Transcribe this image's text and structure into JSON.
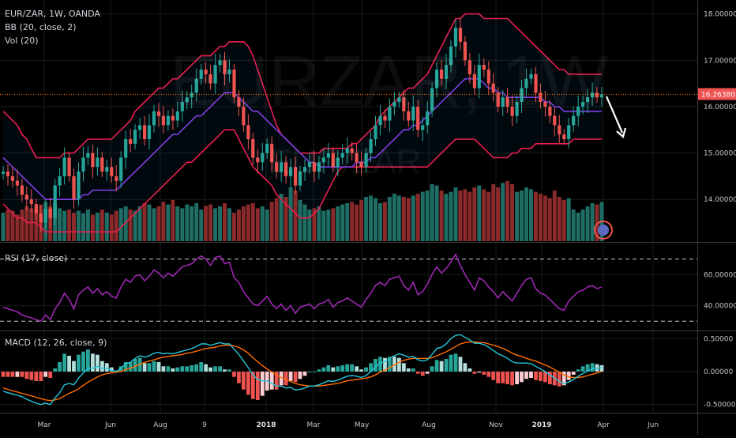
{
  "colors": {
    "background": "#000000",
    "grid": "#1a1a1a",
    "text": "#c8c8c8",
    "up": "#26a69a",
    "down": "#ef5350",
    "bb_band": "#e91e4f",
    "bb_basis": "#7b3fe4",
    "vol_up": "#1e6e66",
    "vol_down": "#8a2a2a",
    "rsi": "#9c27b0",
    "macd": "#26c6da",
    "signal": "#ff6d00",
    "hist_up_strong": "#26a69a",
    "hist_up_weak": "#b2dfdb",
    "hist_down_strong": "#ef5350",
    "hist_down_weak": "#ffcdd2",
    "price_line": "#ff6d00",
    "price_label_bg": "#ef5350",
    "arrow": "#ffffff"
  },
  "legend": {
    "symbol": "EUR/ZAR, 1W, OANDA",
    "bb": "BB (20, close, 2)",
    "vol": "Vol (20)",
    "rsi": "RSI (17, close)",
    "macd": "MACD (12, 26, close, 9)"
  },
  "watermark": {
    "symbol": "EURZAR, 1W",
    "name": "EUR/ZAR"
  },
  "price_label": "16.26380",
  "chart_data": [
    {
      "type": "candlestick",
      "title": "EUR/ZAR, 1W, OANDA",
      "x_labels": [
        "Mar",
        "Jun",
        "Aug",
        "9",
        "2018",
        "Mar",
        "May",
        "Aug",
        "Nov",
        "2019",
        "Apr",
        "Jun"
      ],
      "y_ticks": [
        "18.00000",
        "17.00000",
        "16.00000",
        "15.00000",
        "14.00000"
      ],
      "ylim": [
        13.1,
        18.3
      ],
      "current_price": 16.2638,
      "closes": [
        14.6,
        14.5,
        14.4,
        14.3,
        14.1,
        14.0,
        13.9,
        13.7,
        13.5,
        13.8,
        13.6,
        14.3,
        14.5,
        14.9,
        14.5,
        14.0,
        14.6,
        14.9,
        15.0,
        14.7,
        14.9,
        14.6,
        14.7,
        14.5,
        14.4,
        14.9,
        15.3,
        15.2,
        15.5,
        15.6,
        15.3,
        15.6,
        15.9,
        15.8,
        15.6,
        15.8,
        15.7,
        15.9,
        16.1,
        16.2,
        16.3,
        16.6,
        16.8,
        16.7,
        16.5,
        16.9,
        17.0,
        16.7,
        16.8,
        16.2,
        16.0,
        15.6,
        15.3,
        14.9,
        14.8,
        15.0,
        15.2,
        14.8,
        14.6,
        14.8,
        14.5,
        14.7,
        14.3,
        14.6,
        14.7,
        14.8,
        14.6,
        14.8,
        14.9,
        15.0,
        14.7,
        14.9,
        15.0,
        15.1,
        15.0,
        14.8,
        14.7,
        15.0,
        15.3,
        15.6,
        15.8,
        15.7,
        16.0,
        16.1,
        16.2,
        15.9,
        15.7,
        16.0,
        15.5,
        15.6,
        15.9,
        16.4,
        16.8,
        16.6,
        16.9,
        17.3,
        17.7,
        17.4,
        17.0,
        16.7,
        16.4,
        16.9,
        16.8,
        16.5,
        16.3,
        16.0,
        16.2,
        16.0,
        15.8,
        16.1,
        16.4,
        16.6,
        16.7,
        16.3,
        16.1,
        16.0,
        15.8,
        15.6,
        15.4,
        15.3,
        15.6,
        15.8,
        16.0,
        16.1,
        16.2,
        16.3,
        16.2,
        16.264
      ],
      "bb_upper": [
        15.9,
        15.8,
        15.7,
        15.6,
        15.4,
        15.3,
        15.1,
        14.9,
        14.9,
        14.9,
        14.9,
        14.9,
        14.9,
        15.0,
        15.0,
        15.0,
        15.1,
        15.2,
        15.3,
        15.3,
        15.3,
        15.3,
        15.3,
        15.3,
        15.4,
        15.5,
        15.6,
        15.7,
        15.9,
        16.0,
        16.1,
        16.2,
        16.3,
        16.4,
        16.4,
        16.5,
        16.6,
        16.6,
        16.7,
        16.8,
        16.9,
        17.0,
        17.1,
        17.1,
        17.1,
        17.2,
        17.3,
        17.3,
        17.4,
        17.4,
        17.4,
        17.4,
        17.3,
        17.1,
        16.8,
        16.5,
        16.2,
        15.9,
        15.6,
        15.4,
        15.3,
        15.2,
        15.1,
        15.0,
        15.0,
        15.0,
        15.0,
        15.0,
        15.1,
        15.1,
        15.1,
        15.1,
        15.1,
        15.1,
        15.2,
        15.2,
        15.3,
        15.4,
        15.5,
        15.6,
        15.8,
        15.9,
        16.0,
        16.1,
        16.2,
        16.3,
        16.4,
        16.4,
        16.5,
        16.6,
        16.7,
        16.9,
        17.1,
        17.3,
        17.5,
        17.7,
        17.9,
        17.9,
        18.0,
        18.0,
        18.0,
        18.0,
        17.9,
        17.9,
        17.9,
        17.9,
        17.9,
        17.9,
        17.8,
        17.7,
        17.6,
        17.5,
        17.4,
        17.3,
        17.2,
        17.1,
        17.0,
        16.9,
        16.8,
        16.8,
        16.7,
        16.7,
        16.7,
        16.7,
        16.7,
        16.7,
        16.7,
        16.7
      ],
      "bb_basis": [
        14.9,
        14.8,
        14.7,
        14.6,
        14.5,
        14.4,
        14.3,
        14.2,
        14.1,
        14.0,
        14.0,
        14.0,
        14.0,
        14.0,
        14.0,
        14.0,
        14.0,
        14.1,
        14.1,
        14.2,
        14.2,
        14.2,
        14.2,
        14.2,
        14.2,
        14.3,
        14.4,
        14.5,
        14.6,
        14.7,
        14.8,
        14.9,
        15.0,
        15.1,
        15.2,
        15.3,
        15.4,
        15.4,
        15.5,
        15.6,
        15.7,
        15.8,
        15.8,
        15.9,
        16.0,
        16.1,
        16.2,
        16.3,
        16.3,
        16.3,
        16.2,
        16.1,
        16.0,
        15.9,
        15.9,
        15.8,
        15.7,
        15.6,
        15.5,
        15.4,
        15.3,
        15.2,
        15.1,
        15.0,
        14.9,
        14.8,
        14.8,
        14.7,
        14.7,
        14.7,
        14.7,
        14.7,
        14.7,
        14.7,
        14.7,
        14.8,
        14.8,
        14.8,
        14.9,
        14.9,
        15.0,
        15.1,
        15.2,
        15.3,
        15.4,
        15.5,
        15.5,
        15.6,
        15.6,
        15.7,
        15.8,
        15.9,
        16.0,
        16.1,
        16.2,
        16.3,
        16.4,
        16.5,
        16.6,
        16.6,
        16.6,
        16.6,
        16.5,
        16.4,
        16.4,
        16.3,
        16.3,
        16.2,
        16.2,
        16.2,
        16.2,
        16.2,
        16.2,
        16.2,
        16.2,
        16.1,
        16.1,
        16.0,
        16.0,
        15.9,
        15.9,
        15.9,
        15.9,
        15.9,
        15.9,
        15.9,
        15.9,
        15.9
      ],
      "bb_lower": [
        13.9,
        13.8,
        13.7,
        13.6,
        13.6,
        13.5,
        13.5,
        13.5,
        13.4,
        13.3,
        13.3,
        13.3,
        13.3,
        13.3,
        13.3,
        13.3,
        13.3,
        13.3,
        13.3,
        13.3,
        13.3,
        13.3,
        13.3,
        13.3,
        13.3,
        13.4,
        13.5,
        13.6,
        13.7,
        13.8,
        13.9,
        14.0,
        14.1,
        14.2,
        14.3,
        14.4,
        14.5,
        14.6,
        14.7,
        14.8,
        14.8,
        14.9,
        15.0,
        15.1,
        15.2,
        15.3,
        15.4,
        15.5,
        15.5,
        15.5,
        15.3,
        15.1,
        14.9,
        14.7,
        14.6,
        14.5,
        14.4,
        14.3,
        14.1,
        14.0,
        13.9,
        13.8,
        13.7,
        13.6,
        13.6,
        13.6,
        13.7,
        13.8,
        14.0,
        14.2,
        14.4,
        14.6,
        14.7,
        14.7,
        14.7,
        14.7,
        14.7,
        14.7,
        14.7,
        14.7,
        14.7,
        14.7,
        14.7,
        14.7,
        14.7,
        14.7,
        14.7,
        14.7,
        14.7,
        14.7,
        14.7,
        14.8,
        14.9,
        15.0,
        15.1,
        15.2,
        15.3,
        15.3,
        15.3,
        15.3,
        15.3,
        15.2,
        15.1,
        15.0,
        14.9,
        14.9,
        14.9,
        14.9,
        15.0,
        15.0,
        15.1,
        15.1,
        15.1,
        15.2,
        15.2,
        15.2,
        15.2,
        15.2,
        15.2,
        15.2,
        15.2,
        15.3,
        15.3,
        15.3,
        15.3,
        15.3,
        15.3,
        15.3
      ]
    },
    {
      "type": "bar",
      "title": "Vol (20)",
      "relative_volume": [
        0.45,
        0.5,
        0.48,
        0.42,
        0.5,
        0.55,
        0.52,
        0.5,
        0.58,
        0.62,
        0.55,
        0.6,
        0.52,
        0.48,
        0.5,
        0.45,
        0.48,
        0.44,
        0.5,
        0.42,
        0.45,
        0.5,
        0.45,
        0.42,
        0.48,
        0.52,
        0.55,
        0.5,
        0.48,
        0.55,
        0.6,
        0.58,
        0.52,
        0.55,
        0.62,
        0.58,
        0.65,
        0.55,
        0.52,
        0.58,
        0.55,
        0.6,
        0.5,
        0.56,
        0.58,
        0.52,
        0.55,
        0.6,
        0.52,
        0.45,
        0.5,
        0.55,
        0.58,
        0.6,
        0.52,
        0.55,
        0.5,
        0.62,
        0.68,
        0.75,
        0.7,
        0.85,
        0.8,
        0.65,
        0.58,
        0.5,
        0.52,
        0.55,
        0.48,
        0.5,
        0.52,
        0.55,
        0.58,
        0.6,
        0.62,
        0.58,
        0.65,
        0.7,
        0.72,
        0.68,
        0.6,
        0.62,
        0.7,
        0.75,
        0.72,
        0.7,
        0.68,
        0.72,
        0.75,
        0.78,
        0.8,
        0.9,
        0.88,
        0.8,
        0.75,
        0.78,
        0.85,
        0.8,
        0.82,
        0.78,
        0.85,
        0.88,
        0.82,
        0.78,
        0.9,
        0.85,
        0.92,
        0.95,
        0.9,
        0.78,
        0.8,
        0.85,
        0.82,
        0.78,
        0.75,
        0.72,
        0.68,
        0.8,
        0.7,
        0.65,
        0.68,
        0.5,
        0.45,
        0.5,
        0.55,
        0.6,
        0.58,
        0.62
      ]
    },
    {
      "type": "line",
      "title": "RSI (17, close)",
      "y_ticks": [
        "60.00000",
        "40.00000"
      ],
      "ylim": [
        24,
        78
      ],
      "bands": [
        70,
        30
      ],
      "values": [
        39,
        38,
        37,
        36,
        34,
        33,
        32,
        31,
        30,
        34,
        31,
        38,
        42,
        48,
        44,
        38,
        47,
        50,
        52,
        48,
        51,
        47,
        49,
        46,
        45,
        52,
        57,
        55,
        59,
        60,
        56,
        59,
        63,
        61,
        58,
        61,
        59,
        62,
        65,
        66,
        67,
        70,
        72,
        70,
        66,
        71,
        72,
        67,
        68,
        58,
        55,
        49,
        45,
        41,
        40,
        43,
        46,
        41,
        38,
        41,
        37,
        40,
        35,
        39,
        40,
        41,
        38,
        41,
        42,
        44,
        39,
        42,
        43,
        45,
        43,
        41,
        39,
        44,
        48,
        53,
        55,
        53,
        57,
        58,
        59,
        53,
        50,
        55,
        47,
        49,
        54,
        60,
        65,
        61,
        64,
        68,
        73,
        66,
        60,
        55,
        50,
        58,
        56,
        52,
        49,
        45,
        49,
        46,
        43,
        48,
        53,
        57,
        58,
        51,
        48,
        47,
        44,
        41,
        38,
        37,
        43,
        46,
        49,
        50,
        52,
        53,
        51,
        52
      ]
    },
    {
      "type": "line",
      "title": "MACD (12, 26, close, 9)",
      "y_ticks": [
        "0.50000",
        "0.00000",
        "-0.50000"
      ],
      "ylim": [
        -0.6,
        0.6
      ],
      "macd": [
        -0.3,
        -0.32,
        -0.34,
        -0.36,
        -0.38,
        -0.42,
        -0.45,
        -0.48,
        -0.5,
        -0.48,
        -0.5,
        -0.4,
        -0.32,
        -0.2,
        -0.18,
        -0.2,
        -0.1,
        -0.02,
        0.05,
        0.05,
        0.08,
        0.05,
        0.05,
        0.02,
        0.0,
        0.05,
        0.12,
        0.14,
        0.2,
        0.24,
        0.22,
        0.24,
        0.28,
        0.29,
        0.27,
        0.28,
        0.27,
        0.29,
        0.31,
        0.33,
        0.35,
        0.38,
        0.42,
        0.42,
        0.4,
        0.42,
        0.44,
        0.42,
        0.42,
        0.34,
        0.26,
        0.16,
        0.06,
        -0.05,
        -0.12,
        -0.14,
        -0.14,
        -0.18,
        -0.22,
        -0.22,
        -0.25,
        -0.24,
        -0.28,
        -0.27,
        -0.25,
        -0.22,
        -0.22,
        -0.2,
        -0.17,
        -0.14,
        -0.15,
        -0.13,
        -0.1,
        -0.07,
        -0.06,
        -0.07,
        -0.09,
        -0.06,
        0.0,
        0.07,
        0.13,
        0.15,
        0.2,
        0.24,
        0.27,
        0.25,
        0.22,
        0.23,
        0.18,
        0.16,
        0.18,
        0.26,
        0.35,
        0.37,
        0.42,
        0.5,
        0.55,
        0.56,
        0.52,
        0.48,
        0.43,
        0.43,
        0.41,
        0.37,
        0.32,
        0.27,
        0.24,
        0.2,
        0.15,
        0.13,
        0.13,
        0.13,
        0.12,
        0.08,
        0.04,
        0.0,
        -0.05,
        -0.1,
        -0.15,
        -0.18,
        -0.16,
        -0.12,
        -0.07,
        -0.03,
        0.01,
        0.04,
        0.05,
        0.06
      ],
      "signal": [
        -0.25,
        -0.27,
        -0.29,
        -0.31,
        -0.33,
        -0.35,
        -0.37,
        -0.39,
        -0.41,
        -0.43,
        -0.44,
        -0.43,
        -0.41,
        -0.37,
        -0.33,
        -0.3,
        -0.26,
        -0.21,
        -0.16,
        -0.12,
        -0.08,
        -0.05,
        -0.03,
        -0.02,
        -0.01,
        0.0,
        0.03,
        0.05,
        0.08,
        0.11,
        0.14,
        0.16,
        0.18,
        0.2,
        0.22,
        0.23,
        0.24,
        0.25,
        0.26,
        0.28,
        0.29,
        0.31,
        0.33,
        0.35,
        0.36,
        0.37,
        0.39,
        0.4,
        0.4,
        0.39,
        0.37,
        0.33,
        0.28,
        0.21,
        0.15,
        0.09,
        0.04,
        -0.01,
        -0.05,
        -0.09,
        -0.12,
        -0.15,
        -0.18,
        -0.2,
        -0.21,
        -0.22,
        -0.22,
        -0.22,
        -0.21,
        -0.2,
        -0.19,
        -0.18,
        -0.16,
        -0.14,
        -0.13,
        -0.12,
        -0.11,
        -0.1,
        -0.08,
        -0.05,
        -0.01,
        0.02,
        0.06,
        0.1,
        0.14,
        0.17,
        0.19,
        0.2,
        0.2,
        0.2,
        0.2,
        0.21,
        0.24,
        0.27,
        0.3,
        0.34,
        0.38,
        0.42,
        0.44,
        0.45,
        0.45,
        0.44,
        0.44,
        0.42,
        0.4,
        0.38,
        0.35,
        0.32,
        0.28,
        0.25,
        0.23,
        0.2,
        0.18,
        0.16,
        0.13,
        0.1,
        0.07,
        0.03,
        -0.01,
        -0.05,
        -0.08,
        -0.09,
        -0.09,
        -0.08,
        -0.06,
        -0.04,
        -0.02,
        0.0
      ]
    }
  ]
}
